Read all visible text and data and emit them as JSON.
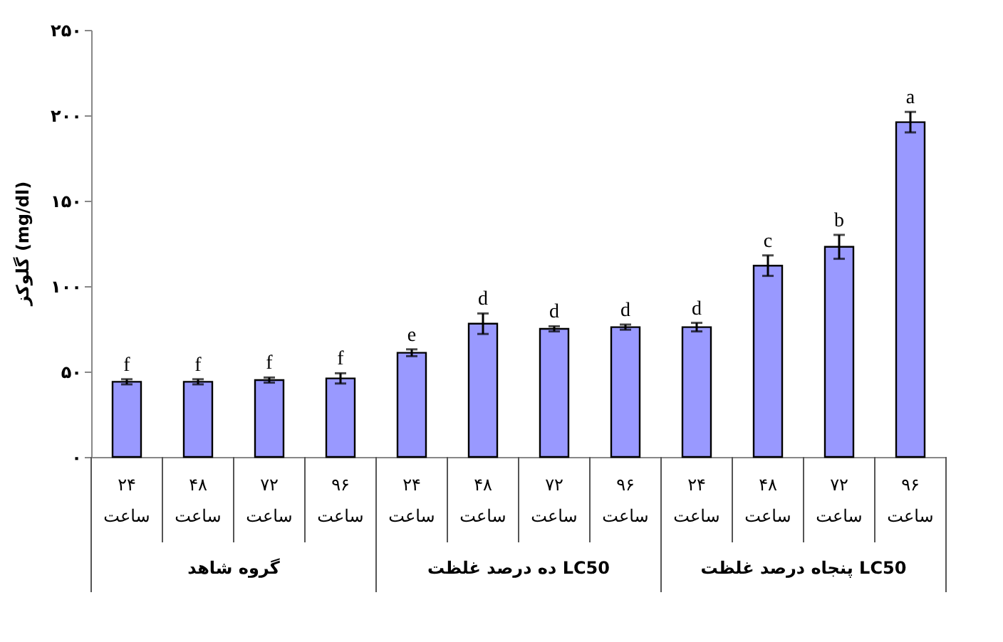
{
  "chart_data": {
    "type": "bar",
    "ylabel": "گلوکز (mg/dl)",
    "categories": [
      "۲۴ ساعت",
      "۴۸ ساعت",
      "۷۲ ساعت",
      "۹۶ ساعت",
      "۲۴ ساعت",
      "۴۸ ساعت",
      "۷۲ ساعت",
      "۹۶ ساعت",
      "۲۴ ساعت",
      "۴۸ ساعت",
      "۷۲ ساعت",
      "۹۶ ساعت"
    ],
    "values": [
      44,
      44,
      45,
      46,
      61,
      78,
      75,
      76,
      76,
      112,
      123,
      196
    ],
    "errors": [
      1.5,
      1.5,
      1.5,
      3,
      2,
      6,
      1.5,
      1.5,
      2.5,
      6,
      7,
      6
    ],
    "value_labels": [
      "f",
      "f",
      "f",
      "f",
      "e",
      "d",
      "d",
      "d",
      "d",
      "c",
      "b",
      "a"
    ],
    "color": "#9999ff",
    "ylim": [
      0,
      250
    ],
    "yticks": [
      {
        "value": 0,
        "label": "۰"
      },
      {
        "value": 50,
        "label": "۵۰"
      },
      {
        "value": 100,
        "label": "۱۰۰"
      },
      {
        "value": 150,
        "label": "۱۵۰"
      },
      {
        "value": 200,
        "label": "۲۰۰"
      },
      {
        "value": 250,
        "label": "۲۵۰"
      }
    ],
    "annotations": [
      "گروه شاهد",
      "ده درصد غلظت LC50",
      "پنجاه درصد غلظت LC50"
    ],
    "grid": false
  }
}
